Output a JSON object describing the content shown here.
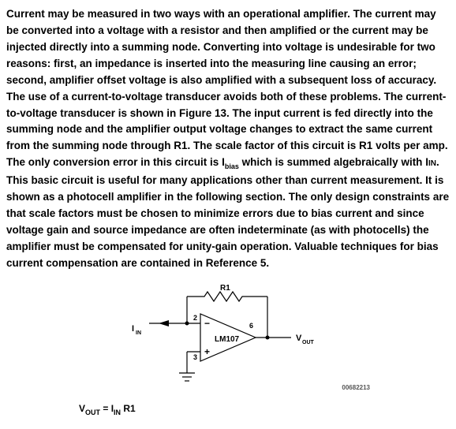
{
  "paragraph": {
    "p1": "Current may be measured in two ways with an operational amplifier. The current may be converted into a voltage with a resistor and then amplified or the current may be injected directly into a summing node. Converting into voltage is undesirable for two reasons: first, an impedance is inserted into the measuring line causing an error; second, amplifier offset voltage is also amplified with a subsequent loss of accuracy. The use of a current-to-voltage transducer avoids both of these problems. The current-to-voltage transducer is shown in Figure 13. The input current is fed directly into the summing node and the amplifier output voltage changes to extract the same current from the summing node through R1. The scale factor of this circuit is R1 volts per amp. The only conversion error in this circuit is ",
    "p1b": " which is summed algebraically with ",
    "p1c": ". This basic circuit is useful for many applications other than current measurement. It is shown as a photocell amplifier in the following section. The only design constraints are that scale factors must be chosen to minimize errors due to bias current and since voltage gain and source impedance are often indeterminate (as with photocells) the amplifier must be compensated for unity-gain operation. Valuable techniques for bias current compensation are contained in Reference 5.",
    "ibias_main": "I",
    "ibias_sub": "bias",
    "iin_main": "I",
    "iin_sub": "IN"
  },
  "figure": {
    "r1_label": "R1",
    "iin_main": "I",
    "iin_sub": "IN",
    "vout_main": "V",
    "vout_sub": "OUT",
    "chip": "LM107",
    "pin2": "2",
    "pin3": "3",
    "pin6": "6",
    "minus": "−",
    "plus": "+",
    "code": "00682213",
    "stroke": "#000000",
    "fill": "#000000",
    "line_width": 1.2
  },
  "equation": {
    "vout_main": "V",
    "vout_sub": "OUT",
    "eq": " = ",
    "iin_main": "I",
    "iin_sub": "IN",
    "r1": " R1"
  }
}
